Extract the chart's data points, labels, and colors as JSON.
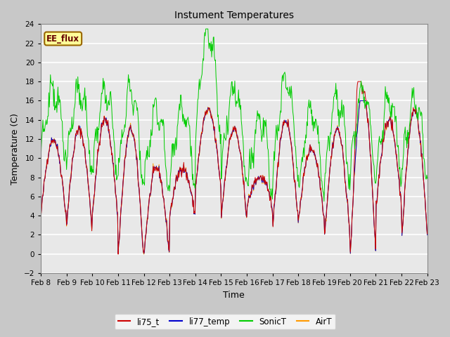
{
  "title": "Instument Temperatures",
  "xlabel": "Time",
  "ylabel": "Temperature (C)",
  "ylim": [
    -2,
    24
  ],
  "yticks": [
    -2,
    0,
    2,
    4,
    6,
    8,
    10,
    12,
    14,
    16,
    18,
    20,
    22,
    24
  ],
  "x_labels": [
    "Feb 8",
    "Feb 9",
    "Feb 10",
    "Feb 11",
    "Feb 12",
    "Feb 13",
    "Feb 14",
    "Feb 15",
    "Feb 16",
    "Feb 17",
    "Feb 18",
    "Feb 19",
    "Feb 20",
    "Feb 21",
    "Feb 22",
    "Feb 23"
  ],
  "line_colors": {
    "li75_t": "#cc0000",
    "li77_temp": "#0000cc",
    "SonicT": "#00cc00",
    "AirT": "#ff9900"
  },
  "legend_label": "EE_flux",
  "legend_box_color": "#ffff99",
  "legend_box_edge": "#996600",
  "fig_bg_color": "#c8c8c8",
  "plot_bg_color": "#e8e8e8",
  "grid_color": "#ffffff",
  "n_points": 720,
  "day_data": {
    "li_maxes": [
      12,
      13,
      14,
      13,
      9,
      9,
      15,
      13,
      8,
      14,
      11,
      13,
      17,
      14,
      15,
      13
    ],
    "li_mins": [
      4,
      3,
      4,
      0,
      0,
      4,
      7,
      4,
      5,
      3,
      4,
      2,
      0,
      5,
      2,
      5
    ],
    "sonic_maxes": [
      17,
      17,
      17,
      17,
      15,
      15,
      23,
      17,
      14,
      18,
      15,
      16,
      17,
      16,
      16,
      14
    ],
    "sonic_mins": [
      10,
      9,
      8,
      7,
      7,
      7,
      12,
      8,
      6,
      8,
      6,
      7,
      8,
      8,
      8,
      10
    ]
  }
}
